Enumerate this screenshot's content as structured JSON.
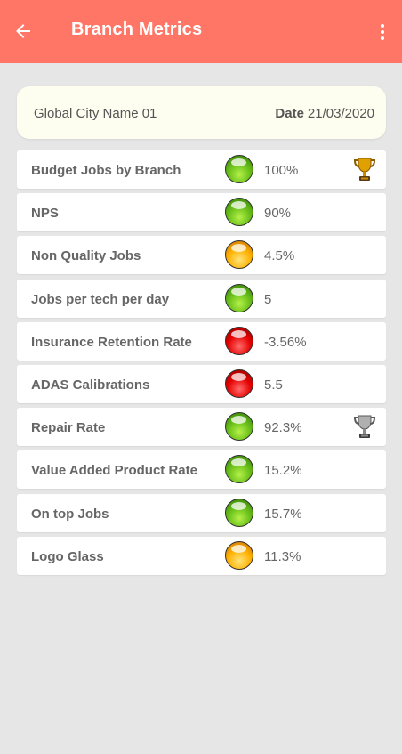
{
  "app_bar": {
    "title": "Branch Metrics",
    "color": "#ff7566"
  },
  "header_card": {
    "city_name": "Global City Name 01",
    "date_label": "Date",
    "date_value": "21/03/2020"
  },
  "colors": {
    "green": "#6cc21b",
    "amber": "#ffb100",
    "red": "#e50000",
    "gold_trophy": "#e0a100",
    "silver_trophy": "#9a9a9a"
  },
  "metrics": [
    {
      "name": "Budget Jobs by Branch",
      "value": "100%",
      "status": "green",
      "trophy": "gold-trophy-icon"
    },
    {
      "name": "NPS",
      "value": "90%",
      "status": "green",
      "trophy": ""
    },
    {
      "name": "Non Quality Jobs",
      "value": "4.5%",
      "status": "amber",
      "trophy": ""
    },
    {
      "name": "Jobs per tech per day",
      "value": "5",
      "status": "green",
      "trophy": ""
    },
    {
      "name": "Insurance Retention Rate",
      "value": "-3.56%",
      "status": "red",
      "trophy": ""
    },
    {
      "name": "ADAS Calibrations",
      "value": "5.5",
      "status": "red",
      "trophy": ""
    },
    {
      "name": "Repair Rate",
      "value": "92.3%",
      "status": "green",
      "trophy": "silver-trophy-icon"
    },
    {
      "name": "Value Added Product Rate",
      "value": "15.2%",
      "status": "green",
      "trophy": ""
    },
    {
      "name": "On top Jobs",
      "value": "15.7%",
      "status": "green",
      "trophy": ""
    },
    {
      "name": "Logo Glass",
      "value": "11.3%",
      "status": "amber",
      "trophy": ""
    }
  ]
}
